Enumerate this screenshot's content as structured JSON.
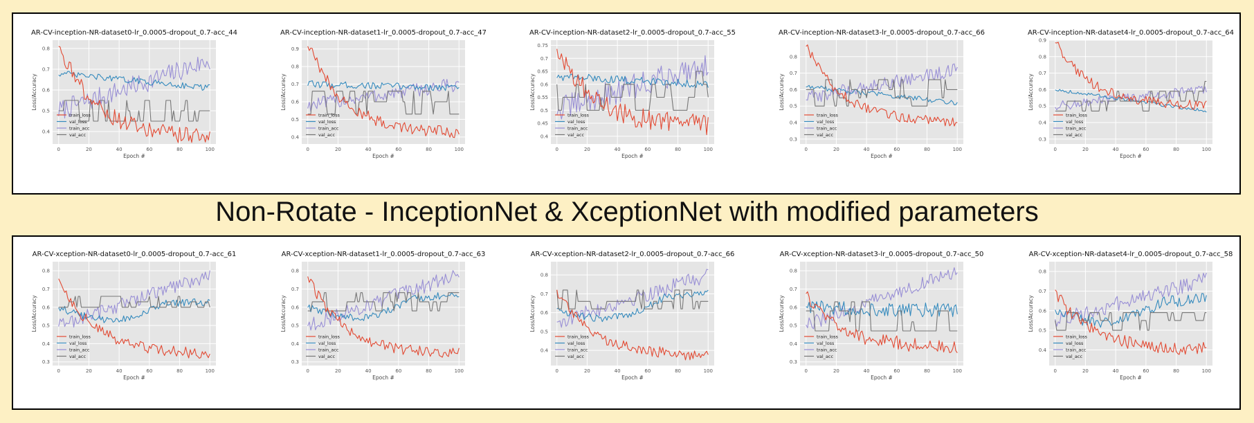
{
  "caption": "Non-Rotate - InceptionNet & XceptionNet with modified parameters",
  "colors": {
    "train_loss": "#e24a33",
    "val_loss": "#348abd",
    "train_acc": "#988ed5",
    "val_acc": "#777777",
    "plot_bg": "#e5e5e5",
    "page_bg": "#fdf0c4"
  },
  "chart_data": [
    {
      "type": "line",
      "title": "AR-CV-inception-NR-dataset0-lr_0.0005-dropout_0.7-acc_44",
      "xlabel": "Epoch #",
      "ylabel": "Loss/Accuracy",
      "xlim": [
        -4,
        104
      ],
      "ylim": [
        0.34,
        0.84
      ],
      "xticks": [
        0,
        20,
        40,
        60,
        80,
        100
      ],
      "yticks": [
        0.4,
        0.5,
        0.6,
        0.7,
        0.8
      ],
      "grid": true,
      "legend": "lower-left",
      "series": [
        {
          "name": "train_loss",
          "start": 0.83,
          "end": 0.37,
          "noise": 0.04,
          "decay": "fast"
        },
        {
          "name": "val_loss",
          "start": 0.68,
          "end": 0.61,
          "noise": 0.015,
          "decay": "slow"
        },
        {
          "name": "train_acc",
          "start": 0.5,
          "end": 0.74,
          "noise": 0.05,
          "decay": "linear"
        },
        {
          "name": "val_acc",
          "start": 0.55,
          "end": 0.45,
          "noise": 0.04,
          "decay": "step",
          "levels": [
            0.45,
            0.5,
            0.55
          ]
        }
      ]
    },
    {
      "type": "line",
      "title": "AR-CV-inception-NR-dataset1-lr_0.0005-dropout_0.7-acc_47",
      "xlabel": "Epoch #",
      "ylabel": "Loss/Accuracy",
      "xlim": [
        -4,
        104
      ],
      "ylim": [
        0.36,
        0.95
      ],
      "xticks": [
        0,
        20,
        40,
        60,
        80,
        100
      ],
      "yticks": [
        0.4,
        0.5,
        0.6,
        0.7,
        0.8,
        0.9
      ],
      "grid": true,
      "legend": "lower-left",
      "series": [
        {
          "name": "train_loss",
          "start": 0.93,
          "end": 0.42,
          "noise": 0.035,
          "decay": "fast"
        },
        {
          "name": "val_loss",
          "start": 0.7,
          "end": 0.68,
          "noise": 0.02,
          "decay": "slow"
        },
        {
          "name": "train_acc",
          "start": 0.58,
          "end": 0.7,
          "noise": 0.04,
          "decay": "linear"
        },
        {
          "name": "val_acc",
          "start": 0.6,
          "end": 0.55,
          "noise": 0.05,
          "decay": "step",
          "levels": [
            0.53,
            0.6,
            0.66,
            0.7
          ]
        }
      ]
    },
    {
      "type": "line",
      "title": "AR-CV-inception-NR-dataset2-lr_0.0005-dropout_0.7-acc_55",
      "xlabel": "Epoch #",
      "ylabel": "Loss/Accuracy",
      "xlim": [
        -4,
        104
      ],
      "ylim": [
        0.37,
        0.77
      ],
      "xticks": [
        0,
        20,
        40,
        60,
        80,
        100
      ],
      "yticks": [
        0.4,
        0.45,
        0.5,
        0.55,
        0.6,
        0.65,
        0.7,
        0.75
      ],
      "grid": true,
      "legend": "lower-left",
      "series": [
        {
          "name": "train_loss",
          "start": 0.75,
          "end": 0.44,
          "noise": 0.04,
          "decay": "fast"
        },
        {
          "name": "val_loss",
          "start": 0.63,
          "end": 0.6,
          "noise": 0.015,
          "decay": "slow"
        },
        {
          "name": "train_acc",
          "start": 0.5,
          "end": 0.68,
          "noise": 0.05,
          "decay": "linear"
        },
        {
          "name": "val_acc",
          "start": 0.55,
          "end": 0.55,
          "noise": 0.04,
          "decay": "step",
          "levels": [
            0.5,
            0.55,
            0.6,
            0.65
          ]
        }
      ]
    },
    {
      "type": "line",
      "title": "AR-CV-inception-NR-dataset3-lr_0.0005-dropout_0.7-acc_66",
      "xlabel": "Epoch #",
      "ylabel": "Loss/Accuracy",
      "xlim": [
        -4,
        104
      ],
      "ylim": [
        0.27,
        0.9
      ],
      "xticks": [
        0,
        20,
        40,
        60,
        80,
        100
      ],
      "yticks": [
        0.3,
        0.4,
        0.5,
        0.6,
        0.7,
        0.8
      ],
      "grid": true,
      "legend": "lower-left",
      "series": [
        {
          "name": "train_loss",
          "start": 0.87,
          "end": 0.4,
          "noise": 0.03,
          "decay": "fast"
        },
        {
          "name": "val_loss",
          "start": 0.62,
          "end": 0.52,
          "noise": 0.015,
          "decay": "slow"
        },
        {
          "name": "train_acc",
          "start": 0.55,
          "end": 0.72,
          "noise": 0.04,
          "decay": "linear"
        },
        {
          "name": "val_acc",
          "start": 0.55,
          "end": 0.62,
          "noise": 0.04,
          "decay": "step",
          "levels": [
            0.5,
            0.55,
            0.6,
            0.66
          ]
        }
      ]
    },
    {
      "type": "line",
      "title": "AR-CV-inception-NR-dataset4-lr_0.0005-dropout_0.7-acc_64",
      "xlabel": "Epoch #",
      "ylabel": "Loss/Accuracy",
      "xlim": [
        -4,
        104
      ],
      "ylim": [
        0.27,
        0.9
      ],
      "xticks": [
        0,
        20,
        40,
        60,
        80,
        100
      ],
      "yticks": [
        0.3,
        0.4,
        0.5,
        0.6,
        0.7,
        0.8,
        0.9
      ],
      "grid": true,
      "legend": "lower-left",
      "series": [
        {
          "name": "train_loss",
          "start": 0.89,
          "end": 0.5,
          "noise": 0.03,
          "decay": "fast"
        },
        {
          "name": "val_loss",
          "start": 0.6,
          "end": 0.47,
          "noise": 0.01,
          "decay": "slow"
        },
        {
          "name": "train_acc",
          "start": 0.5,
          "end": 0.6,
          "noise": 0.03,
          "decay": "linear"
        },
        {
          "name": "val_acc",
          "start": 0.47,
          "end": 0.6,
          "noise": 0.03,
          "decay": "step",
          "levels": [
            0.47,
            0.53,
            0.59,
            0.65
          ]
        }
      ]
    },
    {
      "type": "line",
      "title": "AR-CV-xception-NR-dataset0-lr_0.0005-dropout_0.7-acc_61",
      "xlabel": "Epoch #",
      "ylabel": "Loss/Accuracy",
      "xlim": [
        -4,
        104
      ],
      "ylim": [
        0.28,
        0.85
      ],
      "xticks": [
        0,
        20,
        40,
        60,
        80,
        100
      ],
      "yticks": [
        0.3,
        0.4,
        0.5,
        0.6,
        0.7,
        0.8
      ],
      "grid": true,
      "legend": "lower-left",
      "series": [
        {
          "name": "train_loss",
          "start": 0.76,
          "end": 0.34,
          "noise": 0.03,
          "decay": "fast"
        },
        {
          "name": "val_loss",
          "start": 0.6,
          "end": 0.63,
          "noise": 0.02,
          "decay": "dip"
        },
        {
          "name": "train_acc",
          "start": 0.5,
          "end": 0.78,
          "noise": 0.04,
          "decay": "linear"
        },
        {
          "name": "val_acc",
          "start": 0.6,
          "end": 0.62,
          "noise": 0.03,
          "decay": "step",
          "levels": [
            0.6,
            0.63,
            0.66
          ]
        }
      ]
    },
    {
      "type": "line",
      "title": "AR-CV-xception-NR-dataset1-lr_0.0005-dropout_0.7-acc_63",
      "xlabel": "Epoch #",
      "ylabel": "Loss/Accuracy",
      "xlim": [
        -4,
        104
      ],
      "ylim": [
        0.28,
        0.85
      ],
      "xticks": [
        0,
        20,
        40,
        60,
        80,
        100
      ],
      "yticks": [
        0.3,
        0.4,
        0.5,
        0.6,
        0.7,
        0.8
      ],
      "grid": true,
      "legend": "lower-left",
      "series": [
        {
          "name": "train_loss",
          "start": 0.77,
          "end": 0.34,
          "noise": 0.03,
          "decay": "fast"
        },
        {
          "name": "val_loss",
          "start": 0.6,
          "end": 0.67,
          "noise": 0.02,
          "decay": "dip"
        },
        {
          "name": "train_acc",
          "start": 0.5,
          "end": 0.78,
          "noise": 0.04,
          "decay": "linear"
        },
        {
          "name": "val_acc",
          "start": 0.63,
          "end": 0.63,
          "noise": 0.03,
          "decay": "step",
          "levels": [
            0.58,
            0.63,
            0.68,
            0.74
          ]
        }
      ]
    },
    {
      "type": "line",
      "title": "AR-CV-xception-NR-dataset2-lr_0.0005-dropout_0.7-acc_66",
      "xlabel": "Epoch #",
      "ylabel": "Loss/Accuracy",
      "xlim": [
        -4,
        104
      ],
      "ylim": [
        0.32,
        0.87
      ],
      "xticks": [
        0,
        20,
        40,
        60,
        80,
        100
      ],
      "yticks": [
        0.4,
        0.5,
        0.6,
        0.7,
        0.8
      ],
      "grid": true,
      "legend": "lower-left",
      "series": [
        {
          "name": "train_loss",
          "start": 0.72,
          "end": 0.37,
          "noise": 0.03,
          "decay": "fast"
        },
        {
          "name": "val_loss",
          "start": 0.62,
          "end": 0.71,
          "noise": 0.02,
          "decay": "dip"
        },
        {
          "name": "train_acc",
          "start": 0.55,
          "end": 0.8,
          "noise": 0.04,
          "decay": "linear"
        },
        {
          "name": "val_acc",
          "start": 0.66,
          "end": 0.66,
          "noise": 0.03,
          "decay": "step",
          "levels": [
            0.62,
            0.66,
            0.72
          ]
        }
      ]
    },
    {
      "type": "line",
      "title": "AR-CV-xception-NR-dataset3-lr_0.0005-dropout_0.7-acc_50",
      "xlabel": "Epoch #",
      "ylabel": "Loss/Accuracy",
      "xlim": [
        -4,
        104
      ],
      "ylim": [
        0.28,
        0.85
      ],
      "xticks": [
        0,
        20,
        40,
        60,
        80,
        100
      ],
      "yticks": [
        0.3,
        0.4,
        0.5,
        0.6,
        0.7,
        0.8
      ],
      "grid": true,
      "legend": "lower-left",
      "series": [
        {
          "name": "train_loss",
          "start": 0.67,
          "end": 0.38,
          "noise": 0.04,
          "decay": "fast"
        },
        {
          "name": "val_loss",
          "start": 0.6,
          "end": 0.58,
          "noise": 0.04,
          "decay": "slow"
        },
        {
          "name": "train_acc",
          "start": 0.5,
          "end": 0.8,
          "noise": 0.04,
          "decay": "linear"
        },
        {
          "name": "val_acc",
          "start": 0.52,
          "end": 0.55,
          "noise": 0.06,
          "decay": "step",
          "levels": [
            0.47,
            0.52,
            0.58,
            0.63
          ]
        }
      ]
    },
    {
      "type": "line",
      "title": "AR-CV-xception-NR-dataset4-lr_0.0005-dropout_0.7-acc_58",
      "xlabel": "Epoch #",
      "ylabel": "Loss/Accuracy",
      "xlim": [
        -4,
        104
      ],
      "ylim": [
        0.32,
        0.85
      ],
      "xticks": [
        0,
        20,
        40,
        60,
        80,
        100
      ],
      "yticks": [
        0.4,
        0.5,
        0.6,
        0.7,
        0.8
      ],
      "grid": true,
      "legend": "lower-left",
      "series": [
        {
          "name": "train_loss",
          "start": 0.7,
          "end": 0.4,
          "noise": 0.035,
          "decay": "fast"
        },
        {
          "name": "val_loss",
          "start": 0.6,
          "end": 0.66,
          "noise": 0.03,
          "decay": "dip"
        },
        {
          "name": "train_acc",
          "start": 0.55,
          "end": 0.76,
          "noise": 0.04,
          "decay": "linear"
        },
        {
          "name": "val_acc",
          "start": 0.55,
          "end": 0.59,
          "noise": 0.03,
          "decay": "step",
          "levels": [
            0.5,
            0.55,
            0.59
          ]
        }
      ]
    }
  ]
}
